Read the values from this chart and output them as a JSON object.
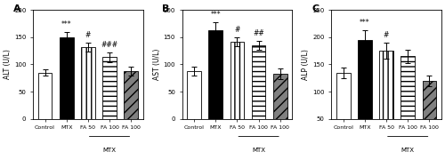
{
  "panels": [
    {
      "label": "A",
      "ylabel": "ALT (U/L)",
      "ylim": [
        0,
        200
      ],
      "yticks": [
        0,
        50,
        100,
        150,
        200
      ],
      "values": [
        85,
        150,
        132,
        113,
        88
      ],
      "errors": [
        6,
        10,
        8,
        9,
        8
      ],
      "annotations": [
        "",
        "***",
        "#",
        "###",
        ""
      ],
      "xlabel_bottom": "MTX",
      "categories": [
        "Control",
        "MTX",
        "FA 50",
        "FA 100",
        "FA 100"
      ]
    },
    {
      "label": "B",
      "ylabel": "AST (U/L)",
      "ylim": [
        0,
        200
      ],
      "yticks": [
        0,
        50,
        100,
        150,
        200
      ],
      "values": [
        88,
        163,
        142,
        135,
        83
      ],
      "errors": [
        8,
        15,
        8,
        8,
        10
      ],
      "annotations": [
        "",
        "***",
        "#",
        "##",
        ""
      ],
      "xlabel_bottom": "MTX",
      "categories": [
        "Control",
        "MTX",
        "FA 50",
        "FA 100",
        "FA 100"
      ]
    },
    {
      "label": "C",
      "ylabel": "ALP (U/L)",
      "ylim": [
        50,
        250
      ],
      "yticks": [
        50,
        100,
        150,
        200,
        250
      ],
      "values": [
        135,
        195,
        175,
        165,
        120
      ],
      "errors": [
        10,
        18,
        15,
        12,
        10
      ],
      "annotations": [
        "",
        "***",
        "#",
        "",
        ""
      ],
      "xlabel_bottom": "MTX",
      "categories": [
        "Control",
        "MTX",
        "FA 50",
        "FA 100",
        "FA 100"
      ]
    }
  ],
  "bar_colors": [
    "white",
    "black",
    "white",
    "white",
    "gray"
  ],
  "bar_hatches": [
    null,
    null,
    "|||",
    "---",
    "///"
  ],
  "bar_edgecolor": "black",
  "fig_bg": "white"
}
